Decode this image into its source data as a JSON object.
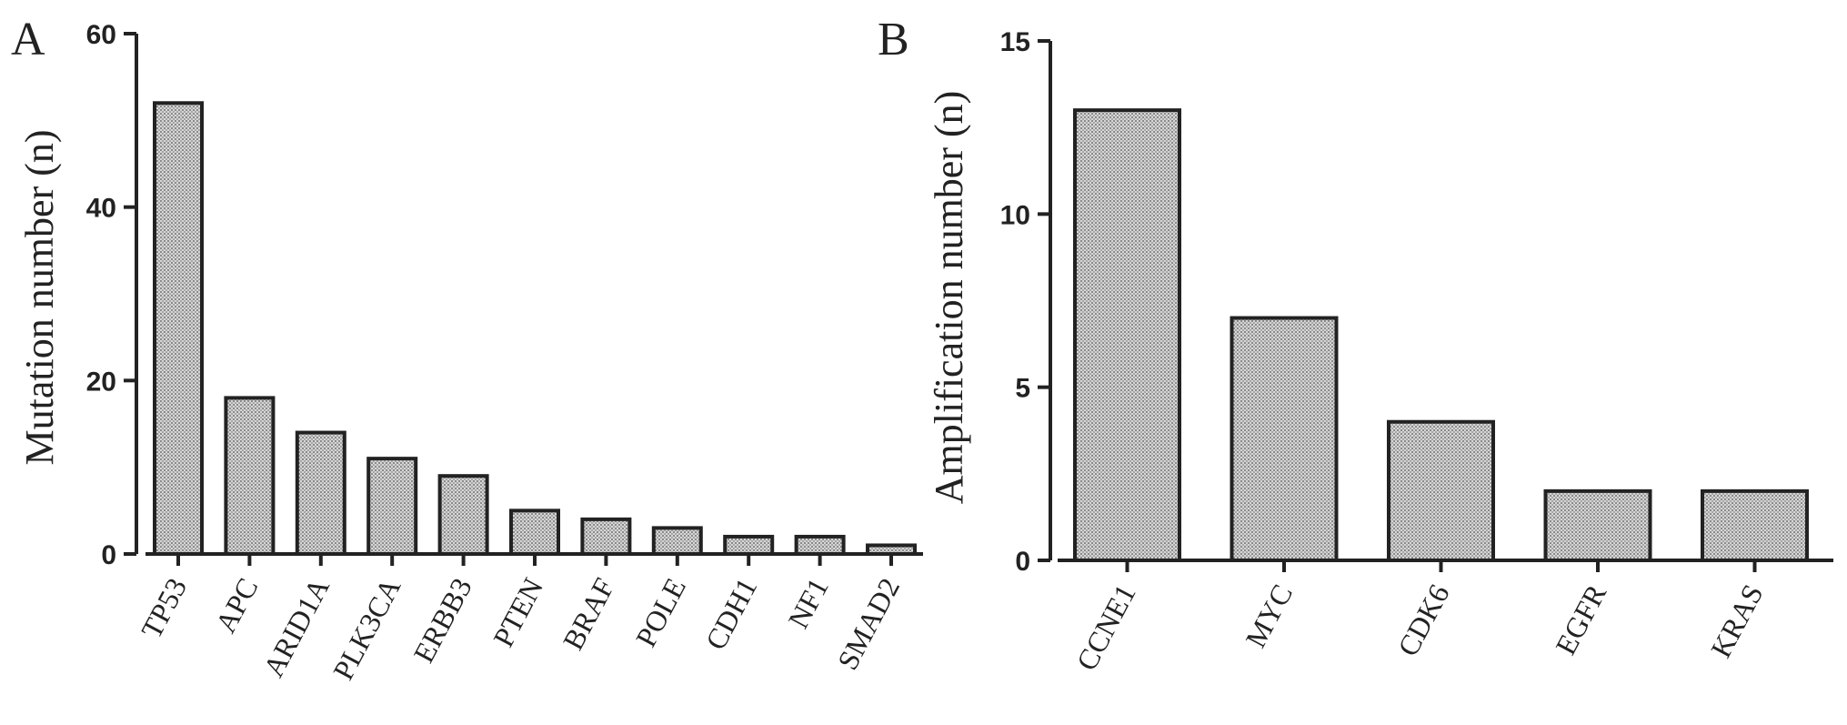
{
  "chart_data": [
    {
      "type": "bar",
      "panel": "A",
      "title": "",
      "xlabel": "",
      "ylabel": "Mutation number (n)",
      "ylim": [
        0,
        60
      ],
      "yticks": [
        0,
        20,
        40,
        60
      ],
      "categories": [
        "TP53",
        "APC",
        "ARID1A",
        "PLK3CA",
        "ERBB3",
        "PTEN",
        "BRAF",
        "POLE",
        "CDH1",
        "NF1",
        "SMAD2"
      ],
      "values": [
        52,
        18,
        14,
        11,
        9,
        5,
        4,
        3,
        2,
        2,
        1
      ],
      "grid": false,
      "fill": "#c8c8c8",
      "edge_color": "#222222"
    },
    {
      "type": "bar",
      "panel": "B",
      "title": "",
      "xlabel": "",
      "ylabel": "Amplification number (n)",
      "ylim": [
        0,
        15
      ],
      "yticks": [
        0,
        5,
        10,
        15
      ],
      "categories": [
        "CCNE1",
        "MYC",
        "CDK6",
        "EGFR",
        "KRAS"
      ],
      "values": [
        13,
        7,
        4,
        2,
        2
      ],
      "grid": false,
      "fill": "#c8c8c8",
      "edge_color": "#222222"
    }
  ]
}
